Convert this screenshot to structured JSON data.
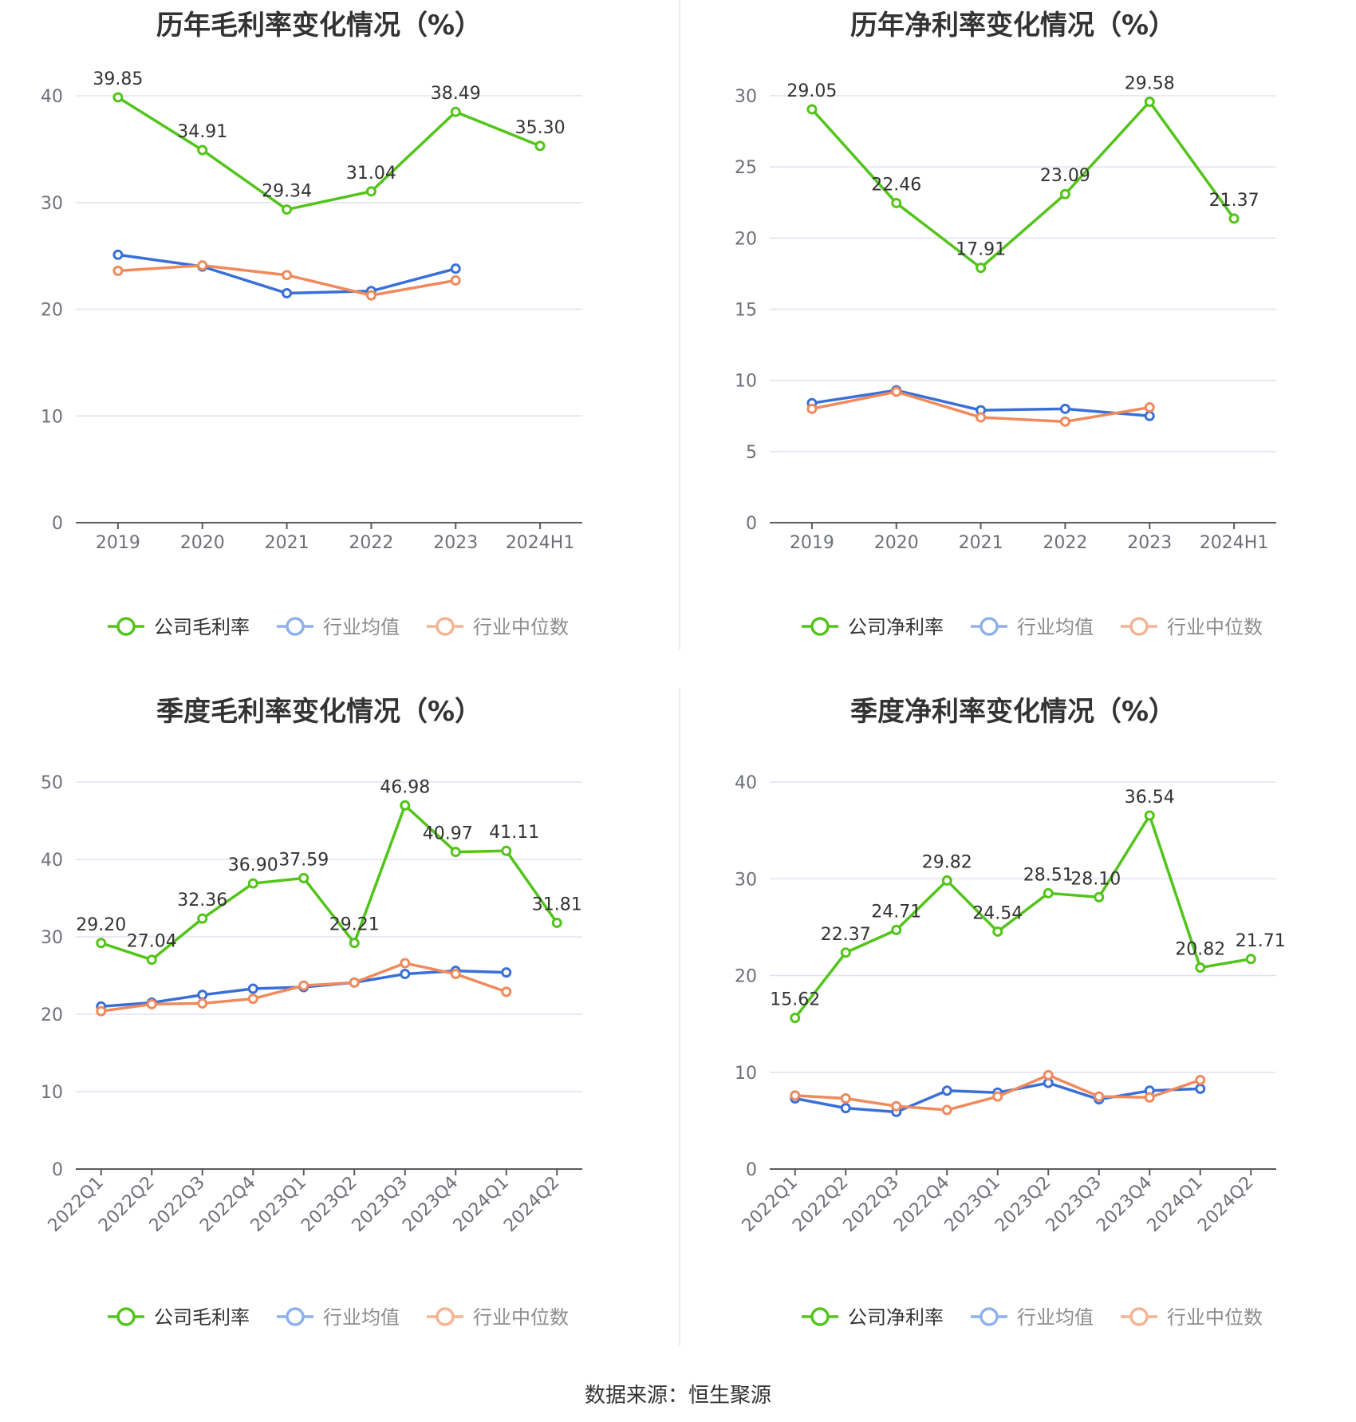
{
  "source": "数据来源：恒生聚源",
  "colors": {
    "company": "#52c41a",
    "avg": "#3a6fd8",
    "median": "#f08a5d",
    "grid": "#dfe3ef",
    "axis": "#5b5b5b",
    "tick": "#6e7079",
    "label": "#333333"
  },
  "chart_data": [
    {
      "type": "line",
      "title": "历年毛利率变化情况（%）",
      "categories": [
        "2019",
        "2020",
        "2021",
        "2022",
        "2023",
        "2024H1"
      ],
      "ylim": [
        0,
        40
      ],
      "yticks": [
        0,
        10,
        20,
        30,
        40
      ],
      "grid": true,
      "legend": "bottom",
      "series": [
        {
          "name": "公司毛利率",
          "values": [
            39.85,
            34.91,
            29.34,
            31.04,
            38.49,
            35.3
          ],
          "labels": [
            "39.85",
            "34.91",
            "29.34",
            "31.04",
            "38.49",
            "35.30"
          ]
        },
        {
          "name": "行业均值",
          "values": [
            25.1,
            24.0,
            21.5,
            21.7,
            23.8,
            null
          ]
        },
        {
          "name": "行业中位数",
          "values": [
            23.6,
            24.1,
            23.2,
            21.3,
            22.7,
            null
          ]
        }
      ]
    },
    {
      "type": "line",
      "title": "历年净利率变化情况（%）",
      "categories": [
        "2019",
        "2020",
        "2021",
        "2022",
        "2023",
        "2024H1"
      ],
      "ylim": [
        0,
        30
      ],
      "yticks": [
        0,
        5,
        10,
        15,
        20,
        25,
        30
      ],
      "grid": true,
      "legend": "bottom",
      "series": [
        {
          "name": "公司净利率",
          "values": [
            29.05,
            22.46,
            17.91,
            23.09,
            29.58,
            21.37
          ],
          "labels": [
            "29.05",
            "22.46",
            "17.91",
            "23.09",
            "29.58",
            "21.37"
          ]
        },
        {
          "name": "行业均值",
          "values": [
            8.4,
            9.3,
            7.9,
            8.0,
            7.5,
            null
          ]
        },
        {
          "name": "行业中位数",
          "values": [
            8.0,
            9.2,
            7.4,
            7.1,
            8.1,
            null
          ]
        }
      ]
    },
    {
      "type": "line",
      "title": "季度毛利率变化情况（%）",
      "categories": [
        "2022Q1",
        "2022Q2",
        "2022Q3",
        "2022Q4",
        "2023Q1",
        "2023Q2",
        "2023Q3",
        "2023Q4",
        "2024Q1",
        "2024Q2"
      ],
      "ylim": [
        0,
        50
      ],
      "yticks": [
        0,
        10,
        20,
        30,
        40,
        50
      ],
      "grid": true,
      "legend": "bottom",
      "series": [
        {
          "name": "公司毛利率",
          "values": [
            29.2,
            27.04,
            32.36,
            36.9,
            37.59,
            29.21,
            46.98,
            40.97,
            41.11,
            31.81
          ],
          "labels": [
            "29.20",
            "27.04",
            "32.36",
            "36.90",
            "37.59",
            "29.21",
            "46.98",
            "40.97",
            "41.11",
            "31.81"
          ]
        },
        {
          "name": "行业均值",
          "values": [
            21.0,
            21.5,
            22.5,
            23.3,
            23.5,
            24.1,
            25.2,
            25.6,
            25.4,
            null
          ]
        },
        {
          "name": "行业中位数",
          "values": [
            20.4,
            21.3,
            21.4,
            22.0,
            23.7,
            24.1,
            26.6,
            25.2,
            22.9,
            null
          ]
        }
      ]
    },
    {
      "type": "line",
      "title": "季度净利率变化情况（%）",
      "categories": [
        "2022Q1",
        "2022Q2",
        "2022Q3",
        "2022Q4",
        "2023Q1",
        "2023Q2",
        "2023Q3",
        "2023Q4",
        "2024Q1",
        "2024Q2"
      ],
      "ylim": [
        0,
        40
      ],
      "yticks": [
        0,
        10,
        20,
        30,
        40
      ],
      "grid": true,
      "legend": "bottom",
      "series": [
        {
          "name": "公司净利率",
          "values": [
            15.62,
            22.37,
            24.71,
            29.82,
            24.54,
            28.51,
            28.1,
            36.54,
            20.82,
            21.71
          ],
          "labels": [
            "15.62",
            "22.37",
            "24.71",
            "29.82",
            "24.54",
            "28.51",
            "28.10",
            "36.54",
            "20.82",
            "21.71"
          ]
        },
        {
          "name": "行业均值",
          "values": [
            7.3,
            6.3,
            5.9,
            8.1,
            7.9,
            8.9,
            7.2,
            8.1,
            8.3,
            null
          ]
        },
        {
          "name": "行业中位数",
          "values": [
            7.6,
            7.3,
            6.5,
            6.1,
            7.5,
            9.7,
            7.5,
            7.4,
            9.2,
            null
          ]
        }
      ]
    }
  ]
}
